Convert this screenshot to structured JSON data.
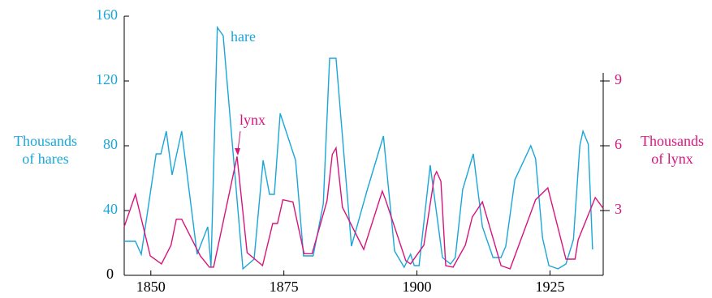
{
  "chart_data": {
    "type": "line",
    "y_label": [
      "Thousands",
      "of hares"
    ],
    "y2_label": [
      "Thousands",
      "of lynx"
    ],
    "xlim": [
      1845,
      1935
    ],
    "xticks": [
      1850,
      1875,
      1900,
      1925
    ],
    "ylim": [
      0,
      160
    ],
    "yticks": [
      0,
      40,
      80,
      120,
      160
    ],
    "y2lim": [
      0,
      12
    ],
    "y2ticks": [
      3,
      6,
      9
    ],
    "series": [
      {
        "name": "hare",
        "color": "#1ba6d9",
        "x": [
          1845,
          1847.1,
          1848.2,
          1851,
          1851.9,
          1852.9,
          1854,
          1855.8,
          1858.7,
          1860.7,
          1861.3,
          1862.5,
          1863.6,
          1867.3,
          1869.4,
          1871.1,
          1872.3,
          1873.2,
          1874.3,
          1877.2,
          1878.7,
          1880.5,
          1882.4,
          1883.6,
          1884.8,
          1887.7,
          1890.6,
          1893.7,
          1895.8,
          1897.6,
          1898.8,
          1899.5,
          1900.4,
          1902.5,
          1904.8,
          1906.3,
          1907.2,
          1908.6,
          1910.6,
          1912.3,
          1914.3,
          1915.8,
          1916.7,
          1918.4,
          1921.4,
          1922.3,
          1923.6,
          1924.8,
          1926.5,
          1928,
          1929.4,
          1930.6,
          1931.2,
          1932.2,
          1933
        ],
        "values": [
          21,
          21,
          13,
          75,
          75,
          89,
          62,
          89,
          13,
          30,
          5,
          153,
          148,
          4,
          10,
          71,
          50,
          50,
          100,
          71,
          12,
          12,
          44,
          134,
          134,
          18,
          52,
          86,
          15,
          5,
          13,
          6,
          6,
          68,
          11,
          7,
          11,
          53,
          75,
          30,
          11,
          11,
          18,
          59,
          80,
          72,
          23,
          6,
          4,
          7,
          22,
          80,
          89,
          81,
          16
        ]
      },
      {
        "name": "lynx",
        "color": "#d6157e",
        "axis": "y2",
        "x": [
          1845,
          1847.1,
          1849.9,
          1852,
          1853.8,
          1854.8,
          1855.8,
          1859.3,
          1861,
          1861.8,
          1866.2,
          1868.1,
          1871,
          1872.9,
          1873.8,
          1874.8,
          1876.7,
          1878.8,
          1880.3,
          1883.1,
          1884.1,
          1884.8,
          1886,
          1890,
          1893.5,
          1894.1,
          1897.9,
          1898.8,
          1901.3,
          1903.3,
          1903.7,
          1904.5,
          1905.4,
          1906.8,
          1909.1,
          1910.4,
          1912.3,
          1915.8,
          1917.5,
          1922.3,
          1924.6,
          1928,
          1929.7,
          1930.3,
          1933.5,
          1935
        ],
        "values": [
          2.25,
          3.75,
          0.9,
          0.53,
          1.4,
          2.6,
          2.6,
          0.9,
          0.38,
          0.38,
          5.5,
          1.05,
          0.45,
          2.4,
          2.4,
          3.5,
          3.4,
          1.0,
          1.0,
          3.45,
          5.6,
          5.9,
          3.15,
          1.2,
          3.9,
          3.5,
          0.68,
          0.53,
          1.4,
          4.6,
          4.8,
          4.35,
          0.45,
          0.38,
          1.4,
          2.7,
          3.4,
          0.45,
          0.3,
          3.5,
          4.05,
          0.75,
          0.75,
          1.65,
          3.6,
          3.1
        ]
      }
    ]
  }
}
